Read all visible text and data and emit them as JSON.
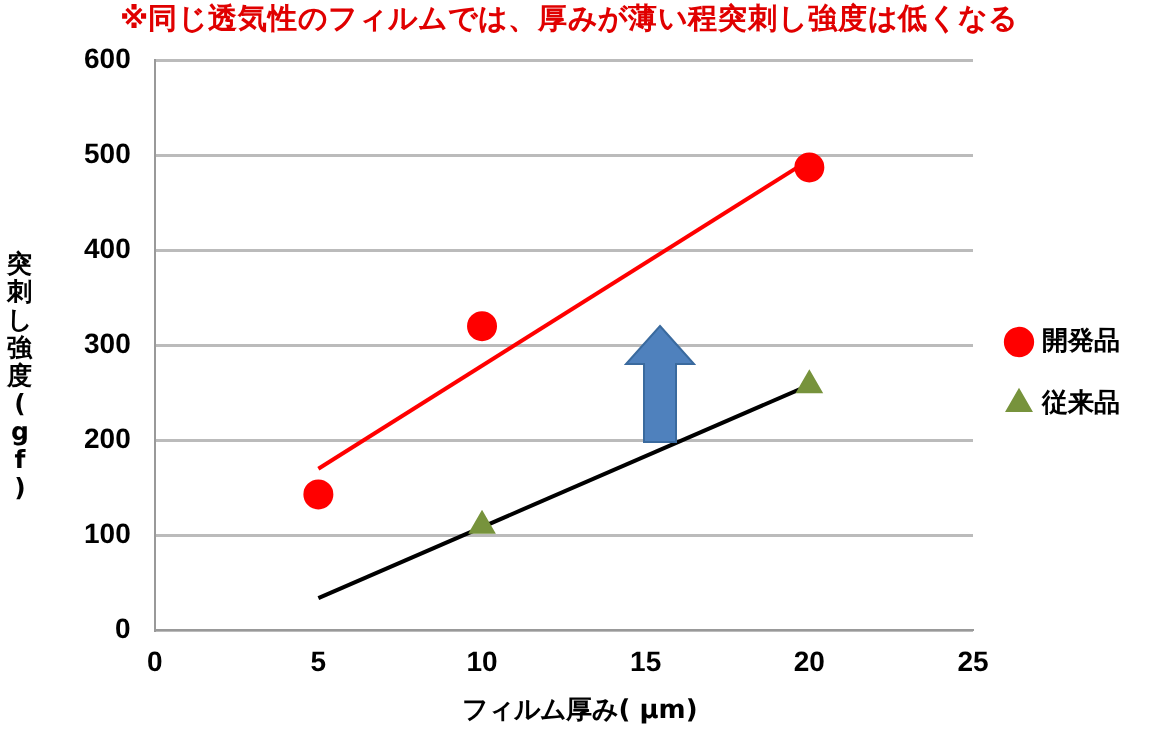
{
  "chart_data": {
    "type": "scatter",
    "title": "※同じ透気性のフィルムでは、厚みが薄い程突刺し強度は低くなる",
    "xlabel": "フィルム厚み( μm)",
    "ylabel": "突刺し強度(gf)",
    "xlim": [
      0,
      25
    ],
    "xticks": [
      0,
      5,
      10,
      15,
      20,
      25
    ],
    "ylim": [
      0,
      600
    ],
    "yticks": [
      0,
      100,
      200,
      300,
      400,
      500,
      600
    ],
    "grid": "y",
    "legend": "right",
    "series": [
      {
        "name": "開発品",
        "color": "#ff0000",
        "marker": "circle",
        "x": [
          5,
          10,
          20
        ],
        "values": [
          143,
          320,
          487
        ]
      },
      {
        "name": "従来品",
        "color": "#77933c",
        "marker": "triangle",
        "x": [
          10,
          20
        ],
        "values": [
          110,
          258
        ]
      },
      {
        "type": "line",
        "color": "#ff0000",
        "marker": "none",
        "x": [
          5,
          20
        ],
        "values": [
          170,
          495
        ]
      },
      {
        "type": "line",
        "color": "#000000",
        "marker": "none",
        "x": [
          5,
          20
        ],
        "values": [
          34,
          258
        ]
      }
    ]
  }
}
